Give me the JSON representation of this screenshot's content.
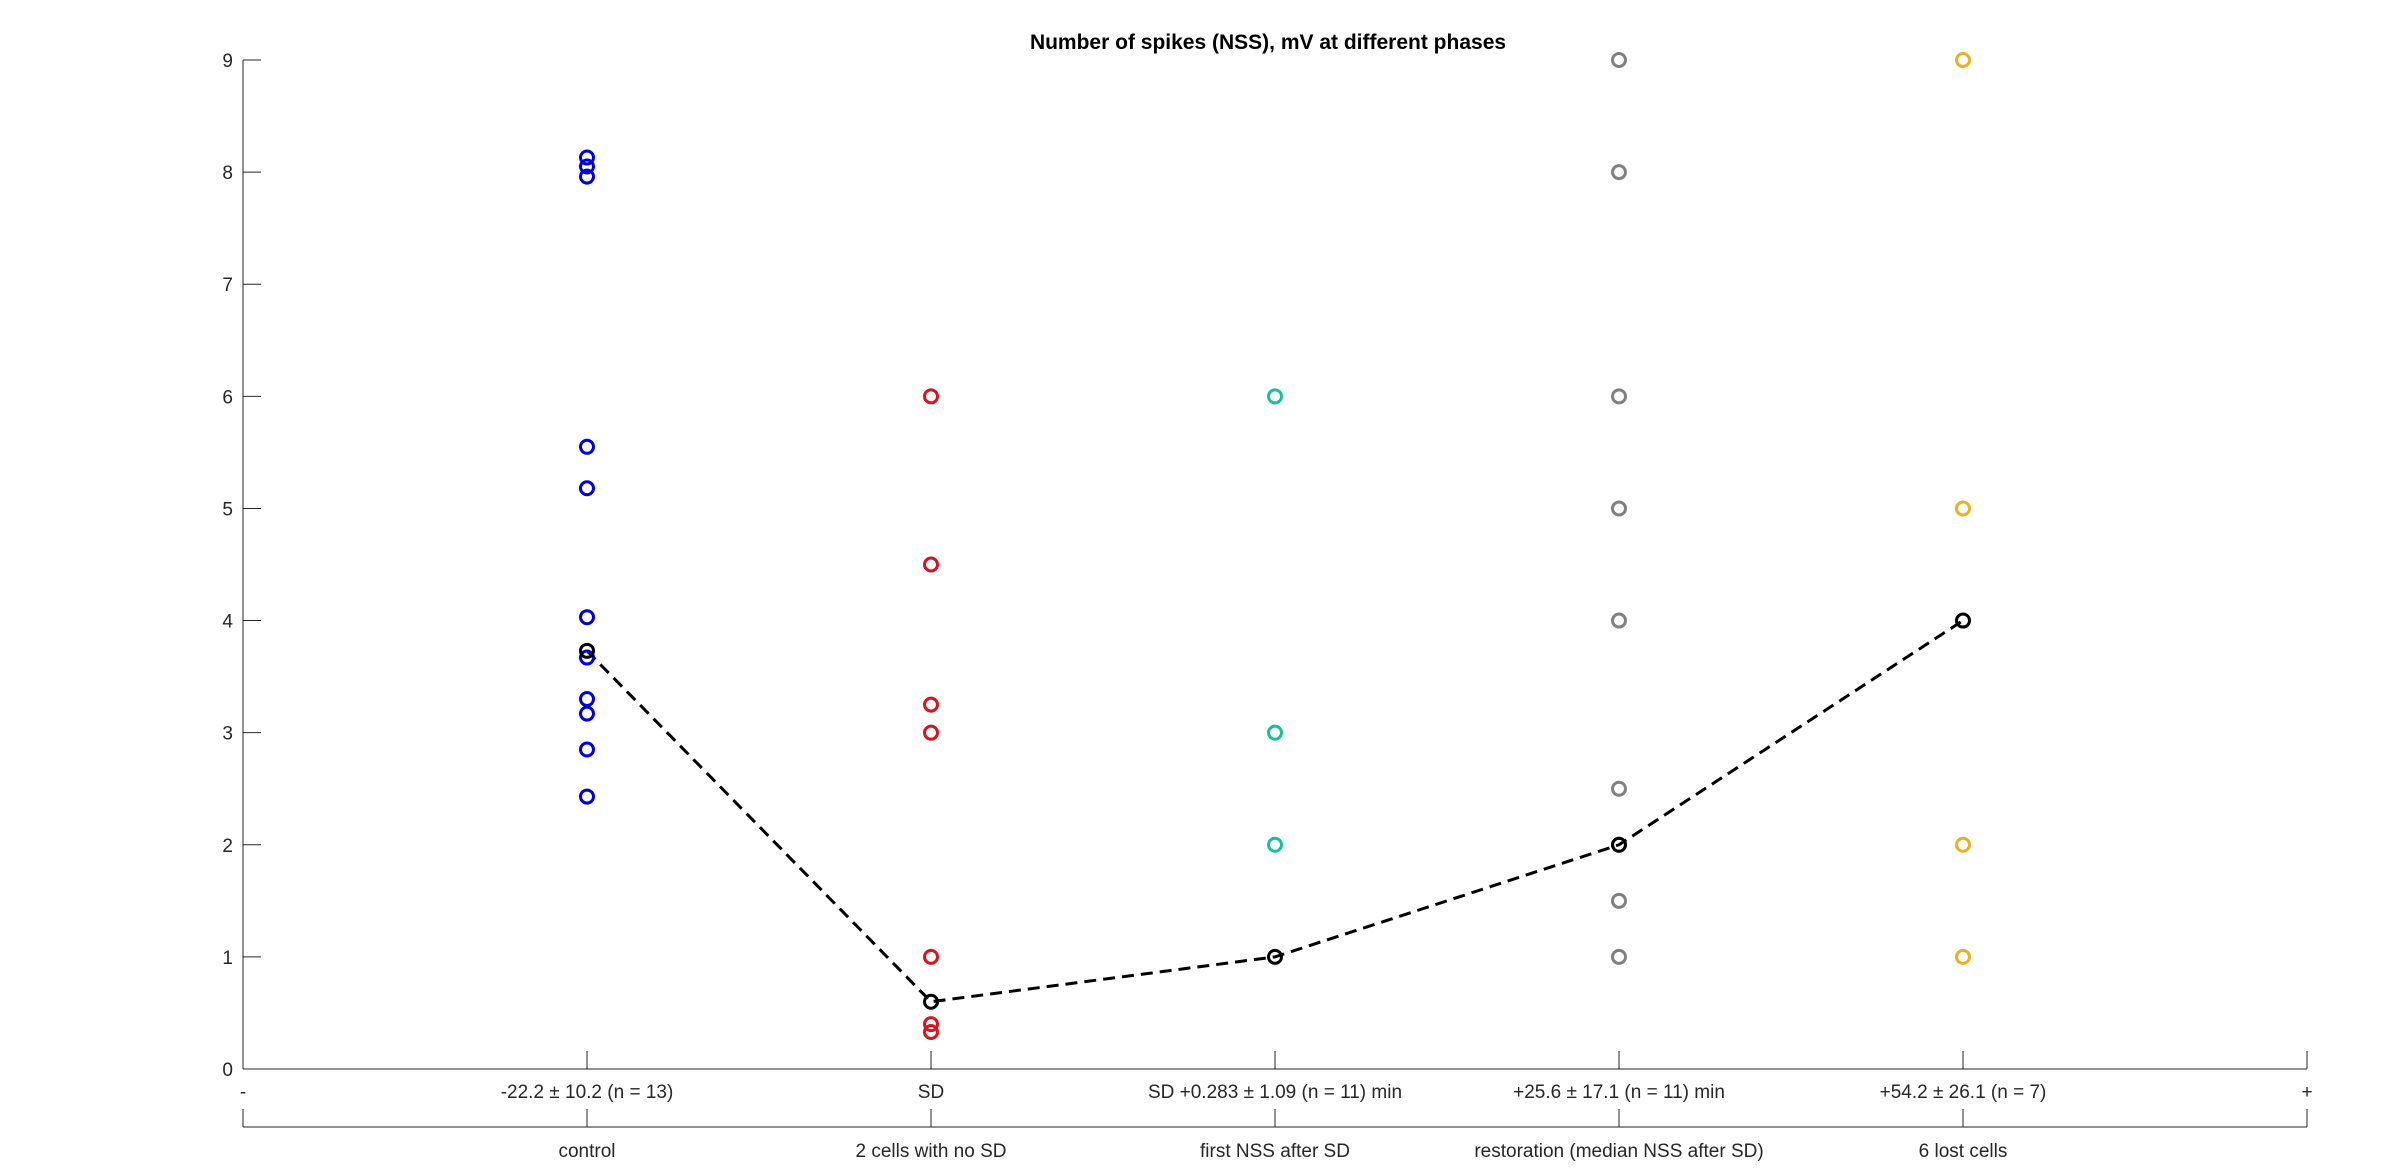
{
  "chart_data": {
    "type": "scatter",
    "title": "Number of spikes (NSS), mV at different phases",
    "xlabel": "",
    "ylabel": "",
    "ylim": [
      0,
      9
    ],
    "yticks": [
      "0",
      "1",
      "2",
      "3",
      "4",
      "5",
      "6",
      "7",
      "8",
      "9"
    ],
    "x_tick_labels": [
      "-",
      "-22.2 ± 10.2 (n = 13)",
      "SD",
      "SD +0.283 ± 1.09 (n = 11) min",
      "+25.6 ± 17.1 (n = 11) min",
      "+54.2 ± 26.1 (n = 7)",
      "+"
    ],
    "group_labels": [
      "control",
      "2 cells with no SD",
      "first NSS after SD",
      "restoration (median NSS after SD)",
      "6 lost cells"
    ],
    "grid": false,
    "series": [
      {
        "x": 1,
        "color": "#0000d9",
        "values": [
          8.13,
          8.05,
          7.96,
          5.55,
          5.18,
          4.03,
          3.67,
          3.3,
          3.17,
          2.85,
          2.43
        ]
      },
      {
        "x": 2,
        "color": "#e0101c",
        "values": [
          6,
          4.5,
          3.25,
          3,
          1,
          0.4,
          0.33
        ]
      },
      {
        "x": 3,
        "color": "#17c29a",
        "values": [
          6,
          3,
          2
        ]
      },
      {
        "x": 4,
        "color": "#808080",
        "values": [
          9,
          8,
          6,
          5,
          4,
          2.5,
          2,
          1.5,
          1
        ]
      },
      {
        "x": 5,
        "color": "#edb120",
        "values": [
          9,
          5,
          2,
          1
        ]
      }
    ],
    "median": {
      "color": "#000000",
      "x": [
        1,
        2,
        3,
        4,
        5
      ],
      "values": [
        3.73,
        0.6,
        1,
        2,
        4
      ]
    }
  }
}
